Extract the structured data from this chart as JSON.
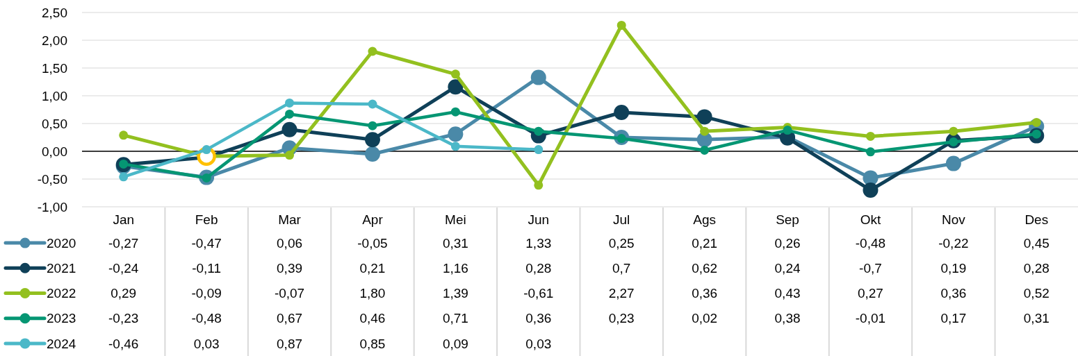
{
  "chart_data": {
    "type": "line",
    "categories": [
      "Jan",
      "Feb",
      "Mar",
      "Apr",
      "Mei",
      "Jun",
      "Jul",
      "Ags",
      "Sep",
      "Okt",
      "Nov",
      "Des"
    ],
    "series": [
      {
        "name": "2020",
        "color": "#4a89a8",
        "values": [
          -0.27,
          -0.47,
          0.06,
          -0.05,
          0.31,
          1.33,
          0.25,
          0.21,
          0.26,
          -0.48,
          -0.22,
          0.45
        ],
        "value_labels": [
          "-0,27",
          "-0,47",
          "0,06",
          "-0,05",
          "0,31",
          "1,33",
          "0,25",
          "0,21",
          "0,26",
          "-0,48",
          "-0,22",
          "0,45"
        ]
      },
      {
        "name": "2021",
        "color": "#0f4058",
        "values": [
          -0.24,
          -0.11,
          0.39,
          0.21,
          1.16,
          0.28,
          0.7,
          0.62,
          0.24,
          -0.7,
          0.19,
          0.28
        ],
        "value_labels": [
          "-0,24",
          "-0,11",
          "0,39",
          "0,21",
          "1,16",
          "0,28",
          "0,7",
          "0,62",
          "0,24",
          "-0,7",
          "0,19",
          "0,28"
        ]
      },
      {
        "name": "2022",
        "color": "#93c01f",
        "values": [
          0.29,
          -0.09,
          -0.07,
          1.8,
          1.39,
          -0.61,
          2.27,
          0.36,
          0.43,
          0.27,
          0.36,
          0.52
        ],
        "value_labels": [
          "0,29",
          "-0,09",
          "-0,07",
          "1,80",
          "1,39",
          "-0,61",
          "2,27",
          "0,36",
          "0,43",
          "0,27",
          "0,36",
          "0,52"
        ],
        "colors": [
          "#93c01f",
          "#ffc000",
          "#93c01f",
          "#93c01f",
          "#93c01f",
          "#93c01f",
          "#93c01f",
          "#93c01f",
          "#93c01f",
          "#93c01f",
          "#93c01f",
          "#93c01f"
        ]
      },
      {
        "name": "2023",
        "color": "#059673",
        "values": [
          -0.23,
          -0.48,
          0.67,
          0.46,
          0.71,
          0.36,
          0.23,
          0.02,
          0.38,
          -0.01,
          0.17,
          0.31
        ],
        "value_labels": [
          "-0,23",
          "-0,48",
          "0,67",
          "0,46",
          "0,71",
          "0,36",
          "0,23",
          "0,02",
          "0,38",
          "-0,01",
          "0,17",
          "0,31"
        ]
      },
      {
        "name": "2024",
        "color": "#4bb8c8",
        "values": [
          -0.46,
          0.03,
          0.87,
          0.85,
          0.09,
          0.03,
          null,
          null,
          null,
          null,
          null,
          null
        ],
        "value_labels": [
          "-0,46",
          "0,03",
          "0,87",
          "0,85",
          "0,09",
          "0,03",
          null,
          null,
          null,
          null,
          null,
          null
        ]
      }
    ],
    "ylim": [
      -1,
      2.5
    ],
    "yticks": [
      {
        "value": -1,
        "label": "-1,00"
      },
      {
        "value": -0.5,
        "label": "-0,50"
      },
      {
        "value": 0,
        "label": "0,00"
      },
      {
        "value": 0.5,
        "label": "0,50"
      },
      {
        "value": 1,
        "label": "1,00"
      },
      {
        "value": 1.5,
        "label": "1,50"
      },
      {
        "value": 2,
        "label": "2,00"
      },
      {
        "value": 2.5,
        "label": "2,50"
      }
    ],
    "grid": "y",
    "legend": "bottom left",
    "marker": "circle"
  }
}
